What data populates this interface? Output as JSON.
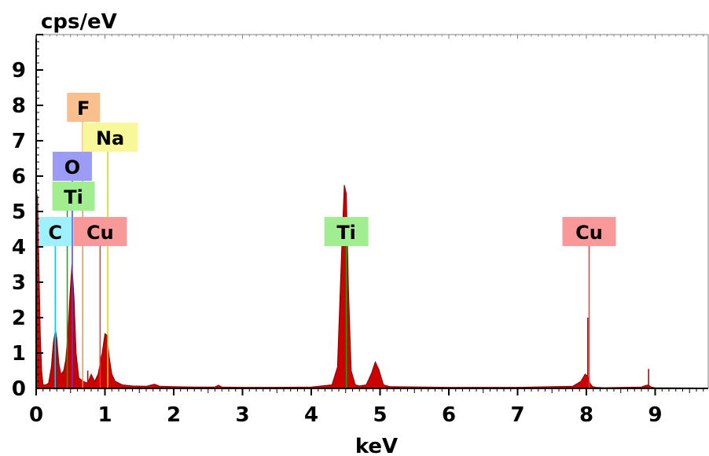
{
  "chart_data": {
    "type": "area",
    "title": "",
    "xlabel": "keV",
    "ylabel": "cps/eV",
    "xlim": [
      0,
      9.7
    ],
    "ylim": [
      0,
      10
    ],
    "x_ticks": [
      0,
      1,
      2,
      3,
      4,
      5,
      6,
      7,
      8,
      9
    ],
    "y_ticks": [
      0,
      1,
      2,
      3,
      4,
      5,
      6,
      7,
      8,
      9
    ],
    "grid": false,
    "fill_color": "#cc0000",
    "line_color": "#8b0000",
    "spectrum": {
      "x": [
        0.0,
        0.02,
        0.04,
        0.06,
        0.08,
        0.1,
        0.14,
        0.18,
        0.22,
        0.25,
        0.28,
        0.3,
        0.33,
        0.36,
        0.4,
        0.43,
        0.46,
        0.49,
        0.52,
        0.55,
        0.58,
        0.62,
        0.68,
        0.75,
        0.8,
        0.85,
        0.9,
        0.93,
        0.96,
        1.0,
        1.03,
        1.06,
        1.1,
        1.15,
        1.25,
        1.4,
        1.6,
        1.72,
        1.8,
        2.0,
        2.3,
        2.6,
        2.65,
        2.7,
        3.0,
        3.5,
        4.0,
        4.3,
        4.38,
        4.44,
        4.48,
        4.51,
        4.54,
        4.58,
        4.64,
        4.7,
        4.8,
        4.88,
        4.93,
        4.98,
        5.05,
        5.15,
        6.0,
        7.0,
        7.8,
        7.92,
        7.98,
        8.02,
        8.05,
        8.09,
        8.14,
        8.25,
        8.8,
        8.86,
        8.9,
        8.94,
        9.0,
        9.7
      ],
      "y": [
        5.6,
        5.4,
        3.5,
        1.5,
        0.5,
        0.1,
        0.1,
        0.15,
        0.6,
        1.3,
        1.65,
        1.4,
        0.7,
        0.4,
        0.5,
        0.8,
        1.5,
        2.6,
        3.5,
        2.6,
        1.0,
        0.3,
        0.2,
        0.15,
        0.4,
        0.2,
        0.4,
        0.7,
        1.0,
        1.55,
        1.5,
        0.9,
        0.4,
        0.2,
        0.1,
        0.07,
        0.06,
        0.12,
        0.06,
        0.05,
        0.04,
        0.04,
        0.09,
        0.04,
        0.03,
        0.03,
        0.04,
        0.1,
        0.6,
        3.8,
        5.75,
        5.5,
        2.8,
        0.5,
        0.1,
        0.07,
        0.1,
        0.45,
        0.75,
        0.55,
        0.1,
        0.05,
        0.03,
        0.03,
        0.06,
        0.2,
        0.4,
        0.35,
        0.15,
        0.05,
        0.03,
        0.02,
        0.04,
        0.08,
        0.1,
        0.04,
        0.02,
        0.01
      ]
    },
    "narrow_lines": [
      {
        "x": 0.75,
        "y": 0.5
      },
      {
        "x": 0.93,
        "y": 0.95
      },
      {
        "x": 8.02,
        "y": 2.0
      },
      {
        "x": 8.905,
        "y": 0.55
      }
    ],
    "element_markers": [
      {
        "label": "C",
        "energy": 0.277,
        "color": "#00d0ff",
        "box_color": "#9ff0ff"
      },
      {
        "label": "Ti",
        "energy": 0.452,
        "color": "#00b000",
        "box_color": "#a0ee90"
      },
      {
        "label": "O",
        "energy": 0.525,
        "color": "#4040ff",
        "box_color": "#9c9cf6"
      },
      {
        "label": "F",
        "energy": 0.677,
        "color": "#ff8c3a",
        "box_color": "#f9c08e"
      },
      {
        "label": "Cu",
        "energy": 0.93,
        "color": "#ff3030",
        "box_color": "#f89898"
      },
      {
        "label": "Na",
        "energy": 1.041,
        "color": "#d8d800",
        "box_color": "#f8f89a"
      },
      {
        "label": "Ti",
        "energy": 4.51,
        "color": "#00b000",
        "box_color": "#a0ee90"
      },
      {
        "label": "Cu",
        "energy": 8.04,
        "color": "#ff3030",
        "box_color": "#f89898"
      }
    ]
  }
}
